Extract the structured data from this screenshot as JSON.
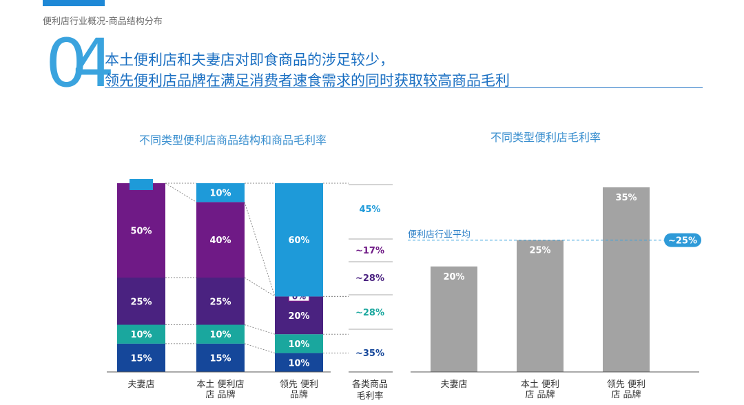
{
  "header": {
    "breadcrumb": "便利店行业概况-商品结构分布",
    "section_number": "04",
    "headline_line1": "本土便利店和夫妻店对即食商品的涉足较少，",
    "headline_line2": "领先便利店品牌在满足消费者速食需求的同时获取较高商品毛利"
  },
  "colors": {
    "accent_blue": "#1e9ad9",
    "purple": "#6f1a86",
    "dark_purple": "#4a2280",
    "teal": "#1aa79e",
    "navy": "#15479a",
    "gray_bar": "#a3a3a3",
    "line_blue": "#3aa3de"
  },
  "chart_data": [
    {
      "type": "bar",
      "stacked": true,
      "title": "不同类型便利店商品结构和商品毛利率",
      "categories": [
        "夫妻店",
        "本土便利店品牌",
        "领先便利店品牌"
      ],
      "category_lines": [
        [
          "夫妻店"
        ],
        [
          "本土 便利店",
          "店    品牌"
        ],
        [
          "领先  便利",
          "       品牌"
        ]
      ],
      "series": [
        {
          "values": [
            15,
            15,
            10
          ],
          "labels": [
            "15%",
            "15%",
            "10%"
          ],
          "color": "#15479a"
        },
        {
          "values": [
            10,
            10,
            10
          ],
          "labels": [
            "10%",
            "10%",
            "10%"
          ],
          "color": "#1aa79e"
        },
        {
          "values": [
            25,
            25,
            20
          ],
          "labels": [
            "25%",
            "25%",
            "20%"
          ],
          "color": "#4a2280"
        },
        {
          "values": [
            50,
            40,
            0
          ],
          "labels": [
            "50%",
            "40%",
            "0%"
          ],
          "color": "#6f1a86"
        },
        {
          "values": [
            0,
            10,
            60
          ],
          "labels": [
            "0%",
            "10%",
            "60%"
          ],
          "color": "#1e9ad9"
        }
      ],
      "margin_column": {
        "label_lines": [
          "各类商品",
          "毛利率"
        ],
        "values": [
          "45%",
          "~17%",
          "~28%",
          "~28%",
          "~35%"
        ],
        "colors": [
          "#1e9ad9",
          "#6f1a86",
          "#4a2280",
          "#1aa79e",
          "#15479a"
        ]
      },
      "ylim": [
        0,
        100
      ]
    },
    {
      "type": "bar",
      "title": "不同类型便利店毛利率",
      "categories": [
        "夫妻店",
        "本土便利店品牌",
        "领先便利店品牌"
      ],
      "category_lines": [
        [
          "夫妻店"
        ],
        [
          "本土 便利",
          "店   品牌"
        ],
        [
          "领先 便利",
          "店   品牌"
        ]
      ],
      "values": [
        20,
        25,
        35
      ],
      "labels": [
        "20%",
        "25%",
        "35%"
      ],
      "reference_line": {
        "value": 25,
        "label": "便利店行业平均",
        "badge": "~25%"
      },
      "ylim": [
        0,
        35
      ]
    }
  ]
}
